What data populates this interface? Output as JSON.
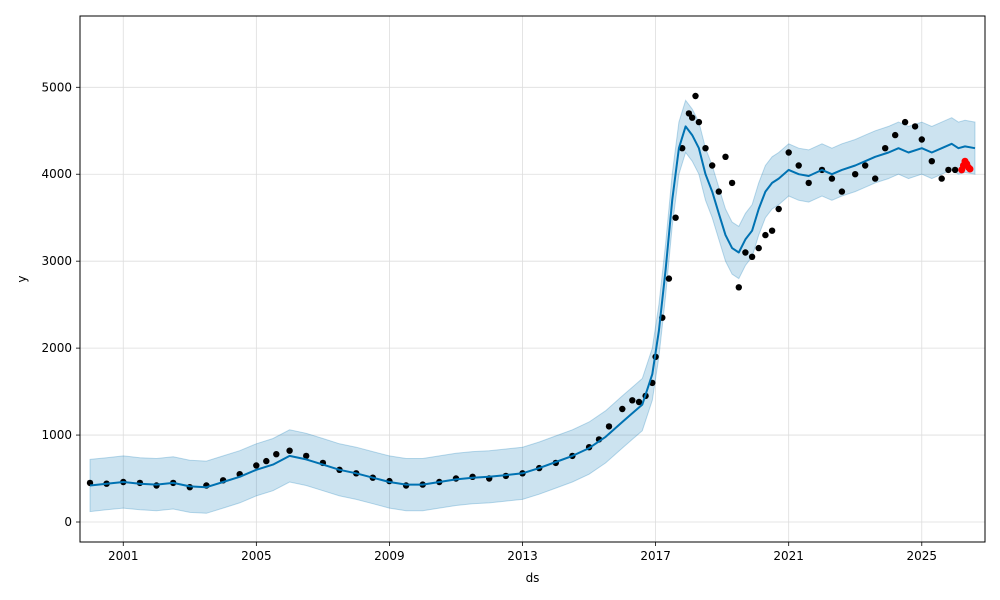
{
  "chart_data": {
    "type": "line",
    "title": "",
    "xlabel": "ds",
    "ylabel": "y",
    "xlim": [
      1999.7,
      2026.9
    ],
    "ylim": [
      -230,
      5820
    ],
    "x_ticks": [
      2001,
      2005,
      2009,
      2013,
      2017,
      2021,
      2025
    ],
    "x_tick_labels": [
      "2001",
      "2005",
      "2009",
      "2013",
      "2017",
      "2021",
      "2025"
    ],
    "y_ticks": [
      0,
      1000,
      2000,
      3000,
      4000,
      5000
    ],
    "y_tick_labels": [
      "0",
      "1000",
      "2000",
      "3000",
      "4000",
      "5000"
    ],
    "grid": true,
    "legend": "none",
    "colors": {
      "observed": "#000000",
      "forecast_line": "#0072B2",
      "uncertainty_band": "#0072B2",
      "future_points": "#ff0000"
    },
    "series": [
      {
        "role": "observed",
        "style": "scatter",
        "x": [
          2000.0,
          2000.5,
          2001.0,
          2001.5,
          2002.0,
          2002.5,
          2003.0,
          2003.5,
          2004.0,
          2004.5,
          2005.0,
          2005.3,
          2005.6,
          2006.0,
          2006.5,
          2007.0,
          2007.5,
          2008.0,
          2008.5,
          2009.0,
          2009.5,
          2010.0,
          2010.5,
          2011.0,
          2011.5,
          2012.0,
          2012.5,
          2013.0,
          2013.5,
          2014.0,
          2014.5,
          2015.0,
          2015.3,
          2015.6,
          2016.0,
          2016.3,
          2016.5,
          2016.7,
          2016.9,
          2017.0,
          2017.2,
          2017.4,
          2017.6,
          2017.8,
          2018.0,
          2018.1,
          2018.2,
          2018.3,
          2018.5,
          2018.7,
          2018.9,
          2019.1,
          2019.3,
          2019.5,
          2019.7,
          2019.9,
          2020.1,
          2020.3,
          2020.5,
          2020.7,
          2021.0,
          2021.3,
          2021.6,
          2022.0,
          2022.3,
          2022.6,
          2023.0,
          2023.3,
          2023.6,
          2023.9,
          2024.2,
          2024.5,
          2024.8,
          2025.0,
          2025.3,
          2025.6,
          2025.8,
          2026.0
        ],
        "y": [
          450,
          440,
          460,
          450,
          420,
          450,
          400,
          420,
          480,
          550,
          650,
          700,
          780,
          820,
          760,
          680,
          600,
          560,
          510,
          470,
          420,
          430,
          460,
          500,
          520,
          500,
          530,
          560,
          620,
          680,
          760,
          860,
          950,
          1100,
          1300,
          1400,
          1380,
          1450,
          1600,
          1900,
          2350,
          2800,
          3500,
          4300,
          4700,
          4650,
          4900,
          4600,
          4300,
          4100,
          3800,
          4200,
          3900,
          2700,
          3100,
          3050,
          3150,
          3300,
          3350,
          3600,
          4250,
          4100,
          3900,
          4050,
          3950,
          3800,
          4000,
          4100,
          3950,
          4300,
          4450,
          4600,
          4550,
          4400,
          4150,
          3950,
          4050,
          4050
        ]
      },
      {
        "role": "forecast",
        "style": "line",
        "x": [
          2000.0,
          2000.5,
          2001.0,
          2001.5,
          2002.0,
          2002.5,
          2003.0,
          2003.5,
          2004.0,
          2004.5,
          2005.0,
          2005.5,
          2006.0,
          2006.5,
          2007.0,
          2007.5,
          2008.0,
          2008.5,
          2009.0,
          2009.5,
          2010.0,
          2010.5,
          2011.0,
          2011.5,
          2012.0,
          2012.5,
          2013.0,
          2013.5,
          2014.0,
          2014.5,
          2015.0,
          2015.5,
          2016.0,
          2016.3,
          2016.6,
          2016.9,
          2017.1,
          2017.3,
          2017.5,
          2017.7,
          2017.9,
          2018.1,
          2018.3,
          2018.5,
          2018.7,
          2018.9,
          2019.1,
          2019.3,
          2019.5,
          2019.7,
          2019.9,
          2020.1,
          2020.3,
          2020.5,
          2020.7,
          2021.0,
          2021.3,
          2021.6,
          2022.0,
          2022.3,
          2022.6,
          2023.0,
          2023.3,
          2023.6,
          2024.0,
          2024.3,
          2024.6,
          2025.0,
          2025.3,
          2025.6,
          2025.9,
          2026.1,
          2026.3,
          2026.6
        ],
        "y": [
          420,
          440,
          460,
          440,
          430,
          450,
          410,
          400,
          460,
          520,
          600,
          660,
          760,
          720,
          660,
          600,
          560,
          510,
          460,
          430,
          430,
          460,
          490,
          510,
          520,
          540,
          560,
          620,
          690,
          760,
          850,
          980,
          1150,
          1250,
          1350,
          1700,
          2200,
          2900,
          3700,
          4300,
          4550,
          4450,
          4300,
          4000,
          3800,
          3550,
          3300,
          3150,
          3100,
          3250,
          3350,
          3600,
          3800,
          3900,
          3950,
          4050,
          4000,
          3980,
          4050,
          4000,
          4050,
          4100,
          4150,
          4200,
          4250,
          4300,
          4250,
          4300,
          4250,
          4300,
          4350,
          4300,
          4320,
          4300
        ]
      },
      {
        "role": "future",
        "style": "scatter",
        "x": [
          2026.2,
          2026.25,
          2026.3,
          2026.35,
          2026.4,
          2026.45
        ],
        "y": [
          4050,
          4100,
          4150,
          4120,
          4080,
          4060
        ]
      }
    ],
    "uncertainty_half_width": 300
  }
}
